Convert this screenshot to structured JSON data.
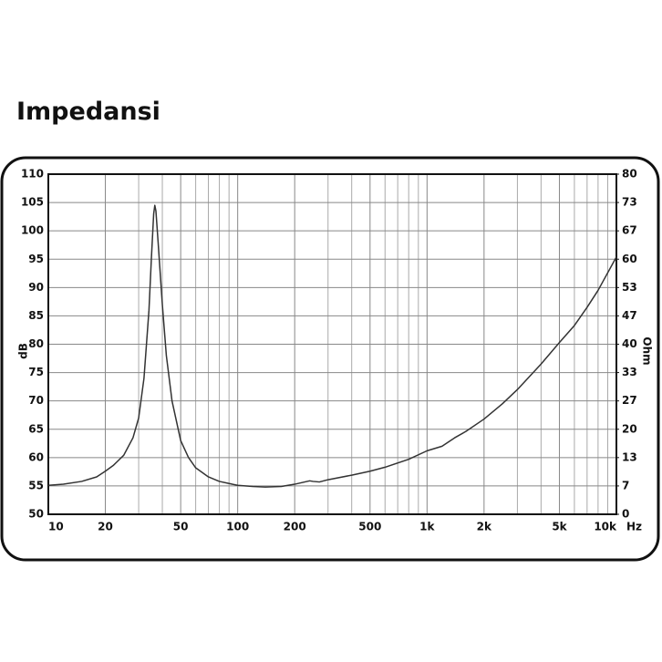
{
  "chart_data": {
    "type": "line",
    "title": "Impedansi",
    "ylabel": "dB",
    "y2label": "Ohm",
    "xlabel": "Hz",
    "xscale": "log",
    "grid": true,
    "xlim": [
      10,
      10000
    ],
    "xticks": [
      10,
      20,
      50,
      100,
      200,
      500,
      {
        "value": 1000,
        "label": "1k"
      },
      {
        "value": 2000,
        "label": "2k"
      },
      {
        "value": 5000,
        "label": "5k"
      },
      {
        "value": 10000,
        "label": "10k"
      }
    ],
    "xminor": [
      30,
      40,
      60,
      70,
      80,
      90,
      300,
      400,
      600,
      700,
      800,
      900,
      3000,
      4000,
      6000,
      7000,
      8000,
      9000
    ],
    "ylim": [
      50,
      110
    ],
    "yticks": [
      50,
      55,
      60,
      65,
      70,
      75,
      80,
      85,
      90,
      95,
      100,
      105,
      110
    ],
    "y2lim": [
      0,
      80
    ],
    "y2ticks": [
      0,
      {
        "value": 6.667,
        "label": "7"
      },
      {
        "value": 13.333,
        "label": "13"
      },
      20,
      {
        "value": 26.667,
        "label": "27"
      },
      {
        "value": 33.333,
        "label": "33"
      },
      40,
      {
        "value": 46.667,
        "label": "47"
      },
      {
        "value": 53.333,
        "label": "53"
      },
      60,
      {
        "value": 66.667,
        "label": "67"
      },
      {
        "value": 73.333,
        "label": "73"
      },
      80
    ],
    "x": [
      10,
      12,
      15,
      18,
      20,
      22,
      25,
      28,
      30,
      32,
      34,
      35,
      36,
      36.5,
      37,
      38,
      40,
      42,
      45,
      50,
      55,
      60,
      70,
      80,
      100,
      120,
      140,
      170,
      200,
      240,
      250,
      270,
      300,
      400,
      500,
      600,
      800,
      1000,
      1200,
      1400,
      1600,
      2000,
      2500,
      3000,
      4000,
      5000,
      6000,
      7000,
      8000,
      10000
    ],
    "series": [
      {
        "color": "#333333",
        "values": [
          55.1,
          55.3,
          55.8,
          56.6,
          57.6,
          58.6,
          60.4,
          63.5,
          67,
          74,
          86,
          95,
          103,
          104.5,
          103.5,
          98,
          87,
          78,
          70,
          63,
          60,
          58.2,
          56.6,
          55.8,
          55.1,
          54.9,
          54.8,
          54.9,
          55.3,
          55.9,
          55.8,
          55.7,
          56.1,
          56.9,
          57.6,
          58.3,
          59.7,
          61.2,
          62,
          63.5,
          64.6,
          66.8,
          69.5,
          72,
          76.5,
          80.3,
          83.3,
          86.5,
          89.5,
          95.4
        ]
      }
    ]
  }
}
